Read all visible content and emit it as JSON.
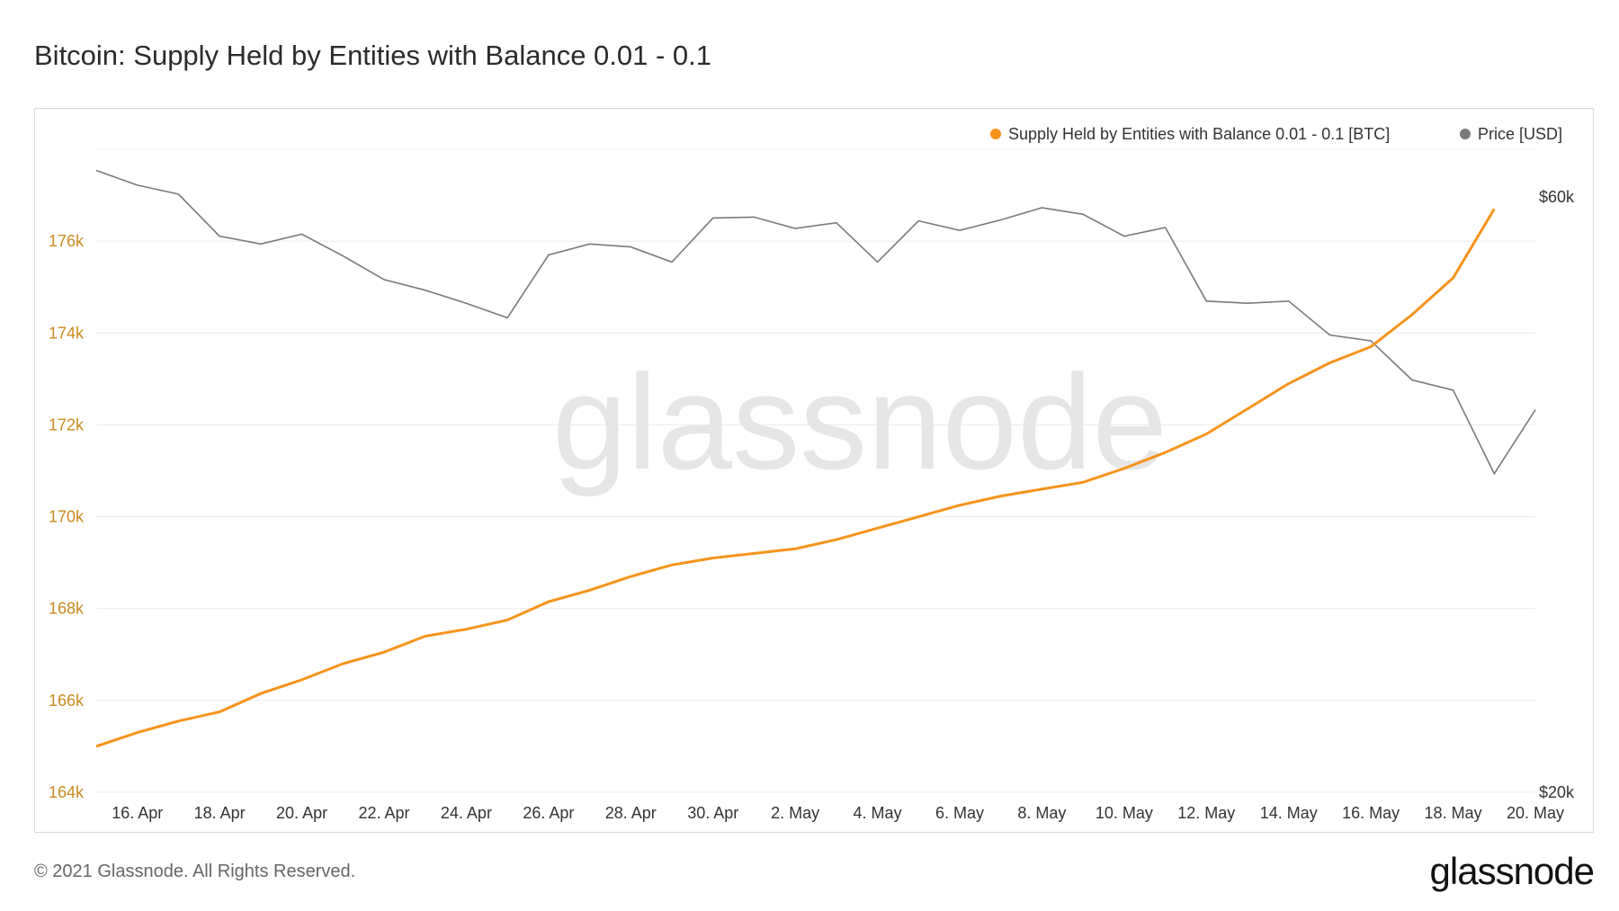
{
  "header": {
    "title": "Bitcoin: Supply Held by Entities with Balance 0.01 - 0.1"
  },
  "footer": {
    "copyright": "© 2021 Glassnode. All Rights Reserved.",
    "brand": "glassnode"
  },
  "watermark": "glassnode",
  "colors": {
    "supply": "#f7931a",
    "price": "#7a7a7a",
    "grid": "#ececec",
    "left_axis": "#c98a1e"
  },
  "chart_data": {
    "type": "line",
    "title": "Bitcoin: Supply Held by Entities with Balance 0.01 - 0.1",
    "legend_position": "top-right",
    "grid": true,
    "x_ticks": [
      "16. Apr",
      "18. Apr",
      "20. Apr",
      "22. Apr",
      "24. Apr",
      "26. Apr",
      "28. Apr",
      "30. Apr",
      "2. May",
      "4. May",
      "6. May",
      "8. May",
      "10. May",
      "12. May",
      "14. May",
      "16. May",
      "18. May",
      "20. May"
    ],
    "x": [
      "15. Apr",
      "16. Apr",
      "17. Apr",
      "18. Apr",
      "19. Apr",
      "20. Apr",
      "21. Apr",
      "22. Apr",
      "23. Apr",
      "24. Apr",
      "25. Apr",
      "26. Apr",
      "27. Apr",
      "28. Apr",
      "29. Apr",
      "30. Apr",
      "1. May",
      "2. May",
      "3. May",
      "4. May",
      "5. May",
      "6. May",
      "7. May",
      "8. May",
      "9. May",
      "10. May",
      "11. May",
      "12. May",
      "13. May",
      "14. May",
      "15. May",
      "16. May",
      "17. May",
      "18. May",
      "19. May",
      "20. May"
    ],
    "y_left": {
      "ticks": [
        "164k",
        "166k",
        "168k",
        "170k",
        "172k",
        "174k",
        "176k"
      ],
      "range": [
        164000,
        178000
      ]
    },
    "y_right": {
      "ticks": [
        "$20k",
        "$60k"
      ],
      "range": [
        20000,
        65500
      ],
      "scale": "log"
    },
    "series": [
      {
        "name": "Supply Held by Entities with Balance 0.01 - 0.1 [BTC]",
        "axis": "left",
        "values": [
          165000,
          165300,
          165550,
          165750,
          166150,
          166450,
          166800,
          167050,
          167400,
          167550,
          167750,
          168150,
          168400,
          168700,
          168950,
          169100,
          169200,
          169300,
          169500,
          169750,
          170000,
          170250,
          170450,
          170600,
          170750,
          171050,
          171400,
          171800,
          172350,
          172900,
          173350,
          173700,
          174400,
          175200,
          176700,
          null
        ]
      },
      {
        "name": "Price [USD]",
        "axis": "right",
        "values": [
          63000,
          61300,
          60300,
          55800,
          55000,
          56000,
          53800,
          51500,
          50500,
          49300,
          48000,
          53900,
          55000,
          54700,
          53200,
          57700,
          57800,
          56600,
          57200,
          53200,
          57400,
          56400,
          57500,
          58800,
          58100,
          55800,
          56700,
          49500,
          49300,
          49500,
          46500,
          46000,
          42800,
          42000,
          36000,
          40500
        ]
      }
    ]
  }
}
